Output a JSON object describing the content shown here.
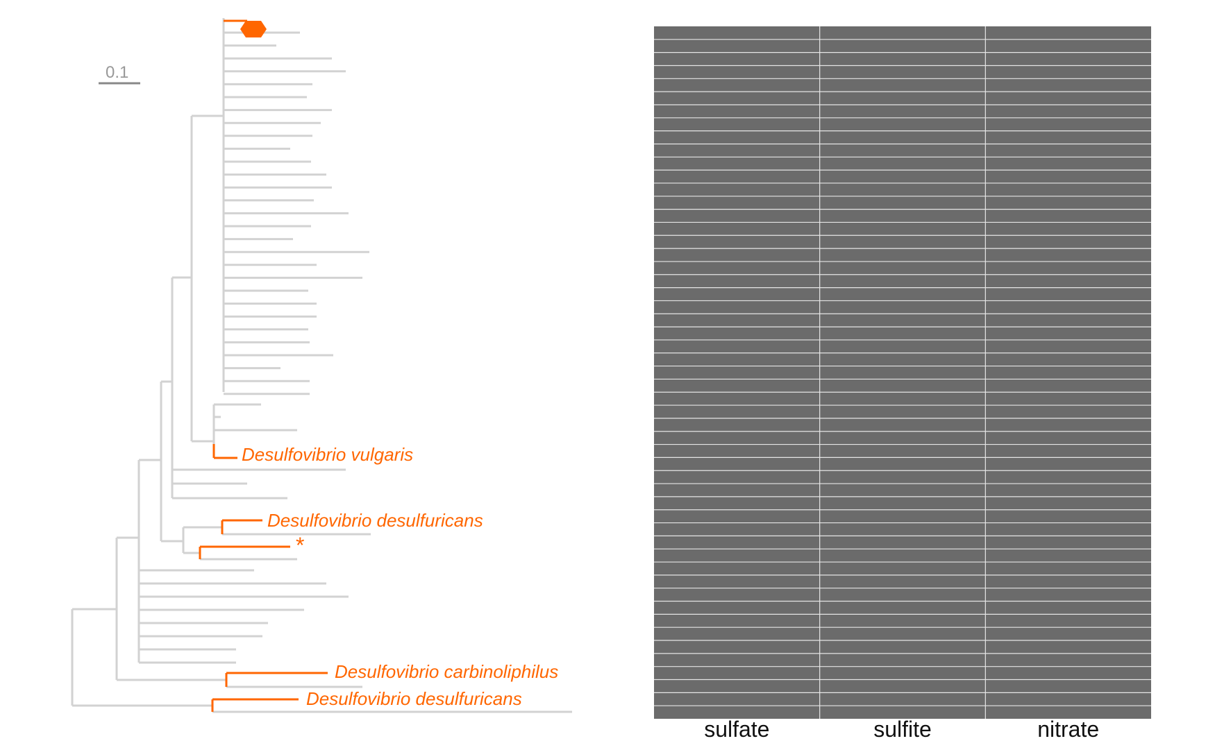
{
  "colors": {
    "highlight": "#ff6600",
    "branch": "#d4d4d4",
    "heatmap_fill": "#6b6b6b",
    "heatmap_line": "#e6e6e6",
    "scale": "#888888"
  },
  "scale_bar": {
    "label": "0.1"
  },
  "tip_labels": {
    "vulgaris": "Desulfovibrio vulgaris",
    "desulfuricans_1": "Desulfovibrio desulfuricans",
    "asterisk": "*",
    "carbinoliphilus": "Desulfovibrio carbinoliphilus",
    "desulfuricans_2": "Desulfovibrio desulfuricans"
  },
  "heatmap": {
    "columns": [
      "sulfate",
      "sulfite",
      "nitrate"
    ],
    "row_count": 53
  },
  "marker": {
    "icon": "diamond-marker-icon"
  }
}
